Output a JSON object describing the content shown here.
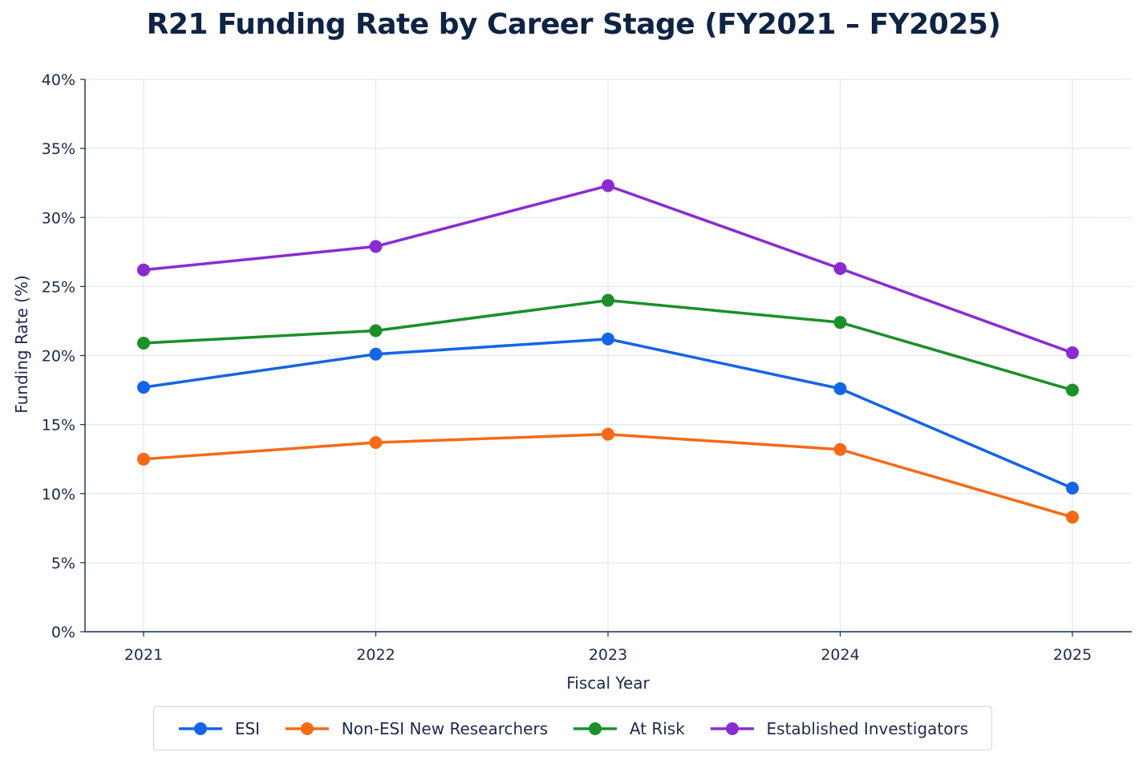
{
  "chart_data": {
    "type": "line",
    "title": "R21 Funding Rate by Career Stage (FY2021 – FY2025)",
    "xlabel": "Fiscal Year",
    "ylabel": "Funding Rate (%)",
    "x": [
      "2021",
      "2022",
      "2023",
      "2024",
      "2025"
    ],
    "ylim": [
      0,
      40
    ],
    "yticks": [
      0,
      5,
      10,
      15,
      20,
      25,
      30,
      35,
      40
    ],
    "ytick_labels": [
      "0%",
      "5%",
      "10%",
      "15%",
      "20%",
      "25%",
      "30%",
      "35%",
      "40%"
    ],
    "grid": true,
    "legend_position": "bottom",
    "series": [
      {
        "name": "ESI",
        "color": "#1464e6",
        "values": [
          17.7,
          20.1,
          21.2,
          17.6,
          10.4
        ]
      },
      {
        "name": "Non-ESI New Researchers",
        "color": "#f56a14",
        "values": [
          12.5,
          13.7,
          14.3,
          13.2,
          8.3
        ]
      },
      {
        "name": "At Risk",
        "color": "#1a8f2a",
        "values": [
          20.9,
          21.8,
          24.0,
          22.4,
          17.5
        ]
      },
      {
        "name": "Established Investigators",
        "color": "#8a2bd2",
        "values": [
          26.2,
          27.9,
          32.3,
          26.3,
          20.2
        ]
      }
    ]
  }
}
